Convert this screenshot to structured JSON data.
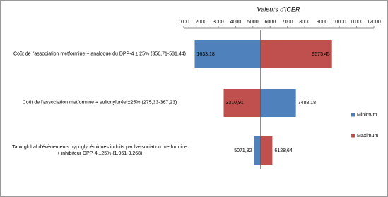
{
  "chart_data": {
    "type": "tornado",
    "title": "Valeurs d'ICER",
    "categories": [
      "Coût de l'association metformine + analogue du DPP-4 ± 25% (356,71-531,44)",
      "Coût de l'association metformine + sulfonylurée ±25% (275,33-367,23)",
      "Taux global d'évènements hypoglycémiques induits par l'association metformine + inhibiteur DPP-4 ±25% (1,961-3,268)"
    ],
    "base": 5450,
    "series": [
      {
        "name": "Minimum",
        "color": "#4f81bd",
        "values": [
          1633.18,
          7488.18,
          5071.82
        ],
        "value_labels": [
          "1633,18",
          "7488,18",
          "5071,82"
        ]
      },
      {
        "name": "Maximum",
        "color": "#c0504d",
        "values": [
          9575.45,
          3310.91,
          6128.64
        ],
        "value_labels": [
          "9575,45",
          "3310,91",
          "6128,64"
        ]
      }
    ],
    "xlim": [
      1000,
      12000
    ],
    "xticks": [
      1000,
      2000,
      3000,
      4000,
      5000,
      6000,
      7000,
      8000,
      9000,
      10000,
      11000,
      12000
    ],
    "legend": "right"
  }
}
